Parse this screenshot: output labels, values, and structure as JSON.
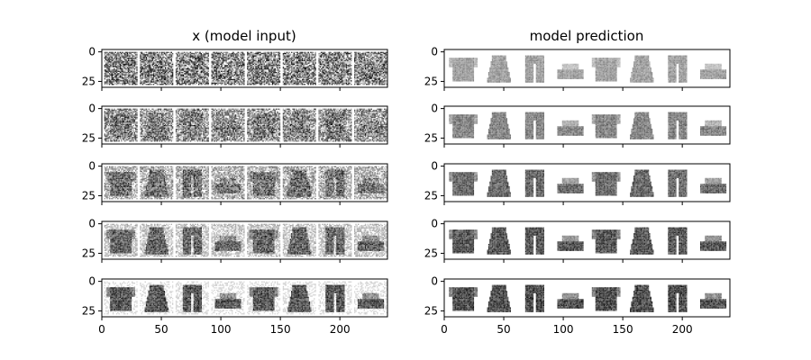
{
  "chart_data": {
    "type": "image-grid",
    "columns": [
      {
        "title": "x (model input)",
        "kind": "input"
      },
      {
        "title": "model prediction",
        "kind": "prediction"
      }
    ],
    "rows": 5,
    "panels_per_row": 8,
    "panel_size": 28,
    "xlim": [
      0,
      240
    ],
    "ylim": [
      0,
      32
    ],
    "xticks": [
      0,
      50,
      100,
      150,
      200
    ],
    "yticks": [
      0,
      25
    ],
    "noise_levels": [
      0.95,
      0.8,
      0.6,
      0.4,
      0.2
    ],
    "prediction_strength": [
      0.45,
      0.6,
      0.75,
      0.85,
      0.9
    ],
    "colormap": "Greys"
  }
}
